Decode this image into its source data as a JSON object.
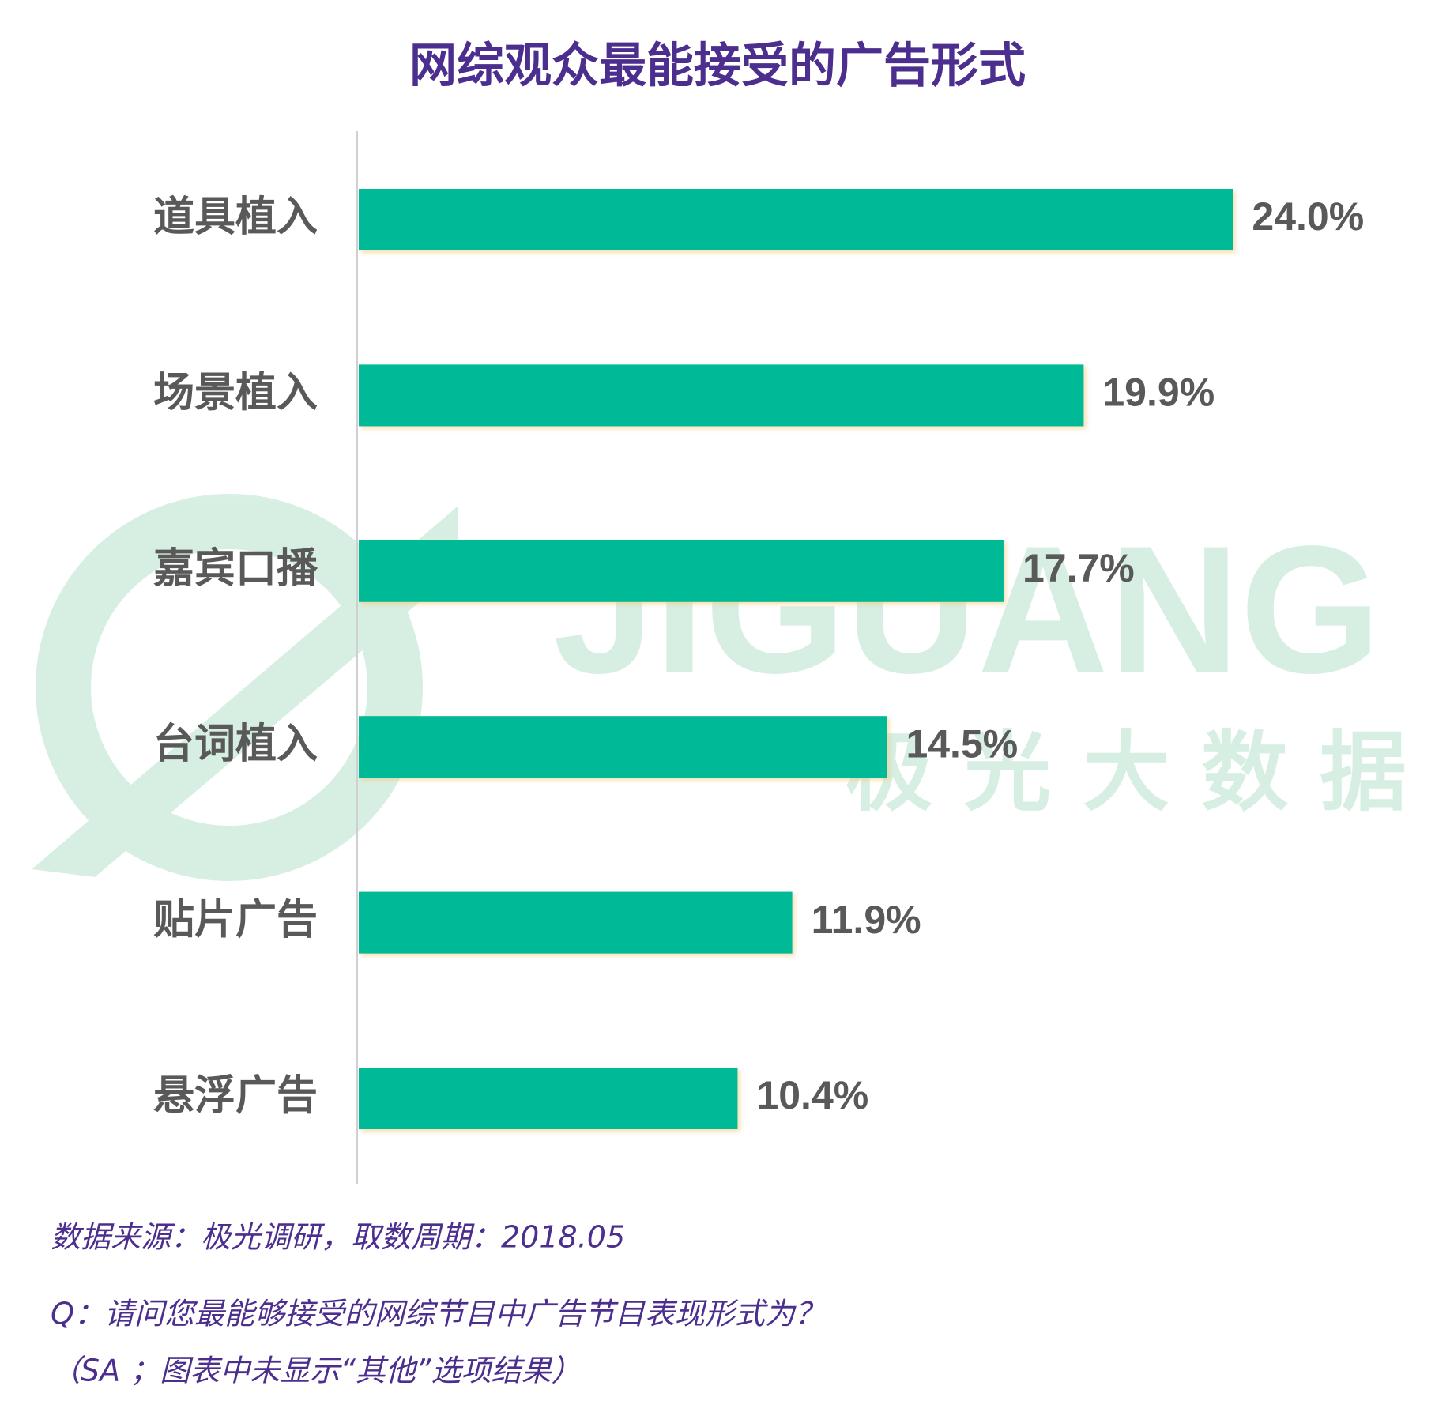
{
  "chart_data": {
    "type": "barh",
    "title": "网综观众最能接受的广告形式",
    "categories": [
      "道具植入",
      "场景植入",
      "嘉宾口播",
      "台词植入",
      "贴片广告",
      "悬浮广告"
    ],
    "values": [
      24.0,
      19.9,
      17.7,
      14.5,
      11.9,
      10.4
    ],
    "value_labels": [
      "24.0%",
      "19.9%",
      "17.7%",
      "14.5%",
      "11.9%",
      "10.4%"
    ],
    "color": "#00b996"
  },
  "watermark": {
    "brand": "JIGUANG",
    "name": "极光大数据"
  },
  "notes": [
    "数据来源：极光调研，取数周期：2018.05",
    "Q：请问您最能够接受的网综节目中广告节目表现形式为？",
    "（SA ；图表中未显示“其他”选项结果）"
  ]
}
